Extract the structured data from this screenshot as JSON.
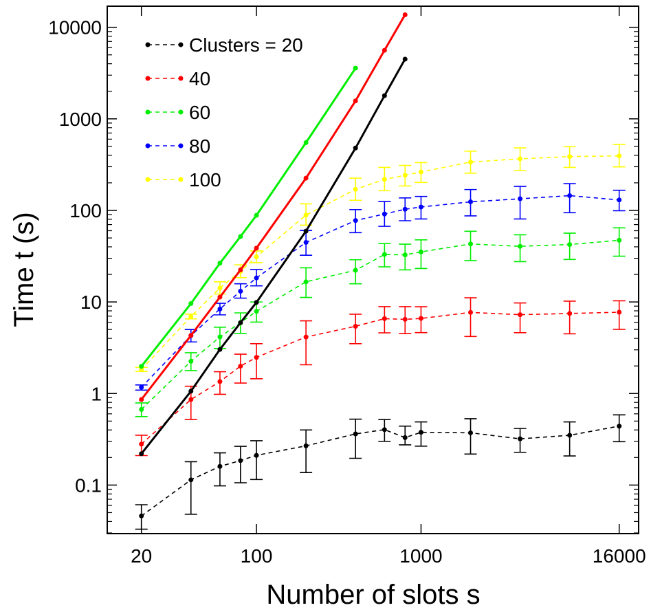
{
  "chart_data": {
    "type": "line",
    "title": "",
    "xlabel": "Number of slots s",
    "ylabel": "Time t (s)",
    "x_scale": "log",
    "y_scale": "log",
    "xlim": [
      12.4,
      21000
    ],
    "ylim": [
      0.0295,
      17000
    ],
    "x_ticks": [
      20,
      100,
      1000,
      16000
    ],
    "x_tick_labels": [
      "20",
      "100",
      "1000",
      "16000"
    ],
    "y_ticks": [
      0.1,
      1,
      10,
      100,
      1000,
      10000
    ],
    "y_tick_labels": [
      "0.1",
      "1",
      "10",
      "100",
      "1000",
      "10000"
    ],
    "grid": false,
    "legend_position": "top-left",
    "legend": [
      {
        "label": "Clusters = 20",
        "color": "#000000"
      },
      {
        "label": "40",
        "color": "#ff0000"
      },
      {
        "label": "60",
        "color": "#00ee00"
      },
      {
        "label": "80",
        "color": "#0000ff"
      },
      {
        "label": "100",
        "color": "#ffff00"
      }
    ],
    "series": [
      {
        "name": "Clusters = 20",
        "style": "dashed",
        "color": "#000000",
        "x": [
          20,
          40,
          60,
          80,
          100,
          200,
          400,
          600,
          800,
          1000,
          2000,
          4000,
          8000,
          16000
        ],
        "y": [
          0.046,
          0.114,
          0.16,
          0.185,
          0.211,
          0.268,
          0.362,
          0.403,
          0.33,
          0.377,
          0.372,
          0.32,
          0.35,
          0.44
        ],
        "err_low": [
          0.033,
          0.048,
          0.098,
          0.106,
          0.115,
          0.137,
          0.196,
          0.3,
          0.275,
          0.266,
          0.218,
          0.228,
          0.208,
          0.298
        ],
        "err_high": [
          0.061,
          0.18,
          0.225,
          0.265,
          0.305,
          0.4,
          0.525,
          0.52,
          0.44,
          0.49,
          0.53,
          0.415,
          0.49,
          0.585
        ]
      },
      {
        "name": "40",
        "style": "dashed",
        "color": "#ff0000",
        "x": [
          20,
          40,
          60,
          80,
          100,
          200,
          400,
          600,
          800,
          1000,
          2000,
          4000,
          8000,
          16000
        ],
        "y": [
          0.28,
          0.86,
          1.35,
          1.99,
          2.48,
          4.14,
          5.42,
          6.57,
          6.46,
          6.61,
          7.69,
          7.26,
          7.48,
          7.73
        ],
        "err_low": [
          0.21,
          0.52,
          0.98,
          1.3,
          1.45,
          2.06,
          3.5,
          4.6,
          4.51,
          4.63,
          4.2,
          4.62,
          4.49,
          5.02
        ],
        "err_high": [
          0.35,
          1.2,
          1.73,
          2.69,
          3.5,
          6.22,
          7.35,
          8.89,
          8.88,
          8.87,
          11.1,
          9.76,
          10.2,
          10.3
        ]
      },
      {
        "name": "60",
        "style": "dashed",
        "color": "#00ee00",
        "x": [
          20,
          40,
          60,
          80,
          100,
          200,
          400,
          600,
          800,
          1000,
          2000,
          4000,
          8000,
          16000
        ],
        "y": [
          0.67,
          2.25,
          4.15,
          5.95,
          7.89,
          16.6,
          22.2,
          33.0,
          32.7,
          35.2,
          43.0,
          40.5,
          42.4,
          47.2
        ],
        "err_low": [
          0.56,
          1.78,
          3.1,
          4.54,
          6.02,
          11.2,
          15.8,
          24.2,
          22.4,
          23.2,
          28.3,
          27.6,
          29.1,
          31.6
        ],
        "err_high": [
          0.79,
          2.79,
          5.3,
          7.6,
          10.0,
          23.6,
          28.9,
          43.4,
          42.8,
          47.7,
          59.2,
          54.2,
          56.4,
          64.5
        ]
      },
      {
        "name": "80",
        "style": "dashed",
        "color": "#0000ff",
        "x": [
          20,
          40,
          60,
          80,
          100,
          200,
          400,
          600,
          800,
          1000,
          2000,
          4000,
          8000,
          16000
        ],
        "y": [
          1.17,
          4.29,
          8.38,
          13.1,
          18.3,
          44.7,
          77.5,
          91.3,
          103,
          109,
          124,
          134,
          145,
          130
        ],
        "err_low": [
          1.09,
          3.66,
          7.23,
          11.0,
          15.0,
          32.4,
          57.2,
          67.0,
          77.1,
          80.6,
          87.2,
          80.6,
          94.4,
          99.2
        ],
        "err_high": [
          1.24,
          5.0,
          9.67,
          15.8,
          22.6,
          60.3,
          102,
          125,
          137,
          142,
          169,
          183,
          196,
          166
        ]
      },
      {
        "name": "100",
        "style": "dashed",
        "color": "#ffff00",
        "x": [
          20,
          40,
          60,
          80,
          100,
          200,
          400,
          600,
          800,
          1000,
          2000,
          4000,
          8000,
          16000
        ],
        "y": [
          1.83,
          6.93,
          14.2,
          21.6,
          31.1,
          88.9,
          170,
          218,
          242,
          263,
          337,
          366,
          387,
          394
        ],
        "err_low": [
          1.74,
          6.53,
          12.2,
          18.4,
          26.9,
          69.0,
          129,
          164,
          185,
          202,
          255,
          272,
          295,
          299
        ],
        "err_high": [
          1.93,
          7.37,
          16.6,
          25.4,
          36.1,
          118,
          225,
          295,
          310,
          333,
          444,
          482,
          496,
          525
        ]
      },
      {
        "name": "Clusters = 20",
        "style": "solid",
        "color": "#000000",
        "x": [
          20,
          40,
          60,
          80,
          100,
          200,
          400,
          600,
          800
        ],
        "y": [
          0.22,
          1.06,
          3.03,
          5.93,
          9.89,
          59.4,
          480,
          1790,
          4490
        ]
      },
      {
        "name": "40",
        "style": "solid",
        "color": "#ff0000",
        "x": [
          20,
          40,
          60,
          80,
          100,
          200,
          400,
          600,
          800
        ],
        "y": [
          0.86,
          4.31,
          11.3,
          22.4,
          38.7,
          225,
          1570,
          5610,
          13700
        ]
      },
      {
        "name": "60",
        "style": "solid",
        "color": "#00ee00",
        "x": [
          20,
          40,
          60,
          80,
          100,
          200,
          400
        ],
        "y": [
          1.98,
          9.62,
          26.5,
          51.8,
          88.3,
          550,
          3580
        ]
      }
    ]
  }
}
